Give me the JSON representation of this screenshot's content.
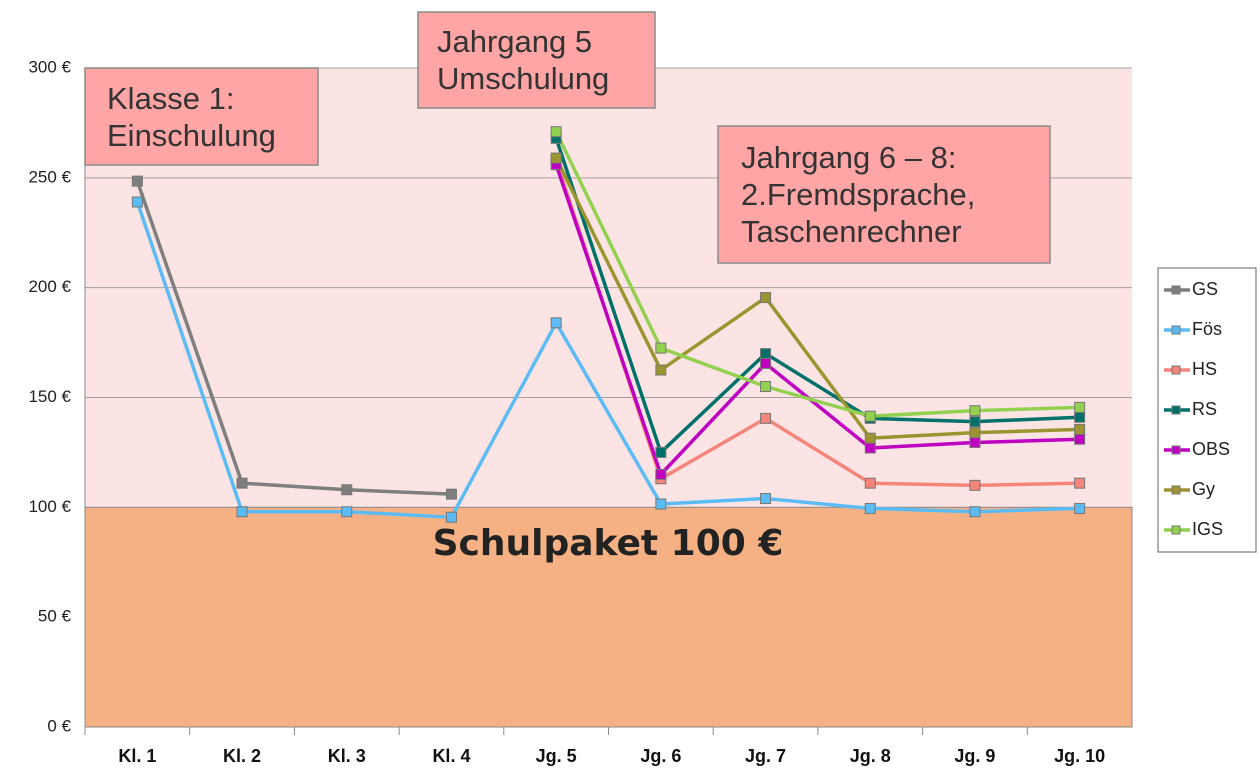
{
  "chart_data": {
    "type": "line",
    "categories": [
      "Kl. 1",
      "Kl. 2",
      "Kl. 3",
      "Kl. 4",
      "Jg. 5",
      "Jg. 6",
      "Jg. 7",
      "Jg. 8",
      "Jg. 9",
      "Jg. 10"
    ],
    "ylim": [
      0,
      300
    ],
    "yticks": [
      {
        "value": 0,
        "label": "0 €"
      },
      {
        "value": 50,
        "label": "50 €"
      },
      {
        "value": 100,
        "label": "100 €"
      },
      {
        "value": 150,
        "label": "150 €"
      },
      {
        "value": 200,
        "label": "200 €"
      },
      {
        "value": 250,
        "label": "250 €"
      },
      {
        "value": 300,
        "label": "300 €"
      }
    ],
    "grid": true,
    "legend": "right",
    "series": [
      {
        "name": "GS",
        "color": "#7f7f7f",
        "values": [
          248.5,
          111,
          108,
          106,
          null,
          null,
          null,
          null,
          null,
          null
        ]
      },
      {
        "name": "Fös",
        "color": "#5bbcf5",
        "values": [
          239,
          98,
          98,
          95.5,
          184,
          101.5,
          104,
          99.5,
          98,
          99.5
        ]
      },
      {
        "name": "HS",
        "color": "#f4857a",
        "values": [
          null,
          null,
          null,
          null,
          258,
          113,
          140.5,
          111,
          110,
          111
        ]
      },
      {
        "name": "RS",
        "color": "#00706a",
        "values": [
          null,
          null,
          null,
          null,
          268,
          125,
          170,
          140.5,
          139,
          141
        ]
      },
      {
        "name": "OBS",
        "color": "#c000c0",
        "values": [
          null,
          null,
          null,
          null,
          256,
          115,
          165.5,
          127,
          129.5,
          131
        ]
      },
      {
        "name": "Gy",
        "color": "#9c9430",
        "values": [
          null,
          null,
          null,
          null,
          259,
          162.5,
          195.5,
          131.5,
          134,
          135.5
        ]
      },
      {
        "name": "IGS",
        "color": "#92d050",
        "values": [
          null,
          null,
          null,
          null,
          271,
          172.5,
          155,
          141.5,
          144,
          145.5
        ]
      }
    ],
    "annotations": [
      {
        "lines": [
          "Klasse 1:",
          "Einschulung"
        ]
      },
      {
        "lines": [
          "Jahrgang 5",
          "Umschulung"
        ]
      },
      {
        "lines": [
          "Jahrgang 6 – 8:",
          "2.Fremdsprache,",
          "Taschenrechner"
        ]
      },
      {
        "lines": [
          "Schulpaket 100 €"
        ]
      }
    ]
  }
}
